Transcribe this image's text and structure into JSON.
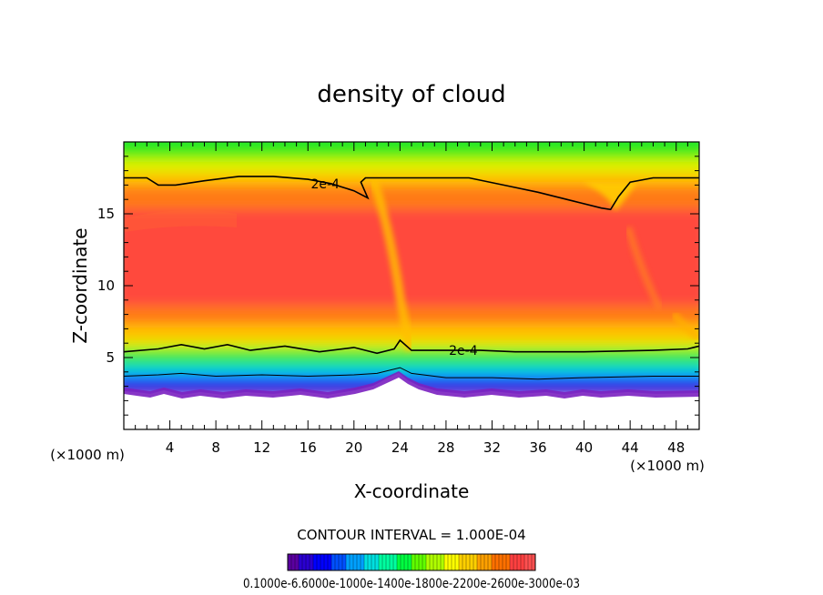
{
  "chart_data": {
    "type": "heatmap",
    "title": "density of cloud",
    "xlabel": "X-coordinate",
    "ylabel": "Z-coordinate",
    "x_unit": "(×1000 m)",
    "z_unit": "(×1000 m)",
    "xlim": [
      0,
      50
    ],
    "ylim": [
      0,
      20
    ],
    "x_ticks": [
      4,
      8,
      12,
      16,
      20,
      24,
      28,
      32,
      36,
      40,
      44,
      48
    ],
    "y_ticks": [
      5,
      10,
      15
    ],
    "grid": false,
    "colormap": "rainbow (purple → blue → cyan → green → yellow → red)",
    "contour_interval": "CONTOUR INTERVAL = 1.000E-04",
    "contour_labels": [
      {
        "text": "2e-4",
        "x": 17.5,
        "z": 17.1
      },
      {
        "text": "2e-4",
        "x": 29.5,
        "z": 5.5
      }
    ],
    "contours": [
      {
        "level": "2e-4",
        "points": [
          [
            0,
            17.5
          ],
          [
            2,
            17.5
          ],
          [
            3,
            17.0
          ],
          [
            4.5,
            17.0
          ],
          [
            7,
            17.3
          ],
          [
            10,
            17.6
          ],
          [
            13,
            17.6
          ],
          [
            16,
            17.4
          ],
          [
            18,
            17.1
          ],
          [
            20,
            16.6
          ],
          [
            21.2,
            16.1
          ],
          [
            20.6,
            17.2
          ],
          [
            21,
            17.5
          ],
          [
            24,
            17.5
          ],
          [
            30,
            17.5
          ],
          [
            33,
            17.0
          ],
          [
            36,
            16.5
          ],
          [
            39,
            15.9
          ],
          [
            41.5,
            15.4
          ],
          [
            42.3,
            15.3
          ],
          [
            43,
            16.2
          ],
          [
            44,
            17.2
          ],
          [
            46,
            17.5
          ],
          [
            50,
            17.5
          ]
        ]
      },
      {
        "level": "2e-4",
        "points": [
          [
            0,
            5.4
          ],
          [
            3,
            5.6
          ],
          [
            5,
            5.9
          ],
          [
            7,
            5.6
          ],
          [
            9,
            5.9
          ],
          [
            11,
            5.5
          ],
          [
            14,
            5.8
          ],
          [
            17,
            5.4
          ],
          [
            20,
            5.7
          ],
          [
            22,
            5.3
          ],
          [
            23.5,
            5.6
          ],
          [
            24,
            6.2
          ],
          [
            25,
            5.5
          ],
          [
            28,
            5.5
          ],
          [
            31,
            5.5
          ],
          [
            34,
            5.4
          ],
          [
            40,
            5.4
          ],
          [
            46,
            5.5
          ],
          [
            49,
            5.6
          ],
          [
            50,
            5.8
          ]
        ]
      },
      {
        "level": "1e-4",
        "points": [
          [
            0,
            3.7
          ],
          [
            3,
            3.8
          ],
          [
            5,
            3.9
          ],
          [
            8,
            3.7
          ],
          [
            12,
            3.8
          ],
          [
            16,
            3.7
          ],
          [
            20,
            3.8
          ],
          [
            22,
            3.9
          ],
          [
            24,
            4.3
          ],
          [
            25,
            3.9
          ],
          [
            28,
            3.6
          ],
          [
            32,
            3.6
          ],
          [
            36,
            3.5
          ],
          [
            40,
            3.6
          ],
          [
            46,
            3.7
          ],
          [
            50,
            3.7
          ]
        ]
      }
    ],
    "colorbar": {
      "tick_labels": "0.1000e-6.6000e-1000e-1400e-1800e-2200e-2600e-3000e-03",
      "colors": [
        "#5a00a0",
        "#2a00d0",
        "#0000ff",
        "#0050ff",
        "#00a0ff",
        "#00e0e0",
        "#00ffa0",
        "#00ff40",
        "#60ff00",
        "#b0ff00",
        "#ffff00",
        "#ffd000",
        "#ffa000",
        "#ff7000",
        "#ff4040",
        "#ff5050"
      ]
    }
  }
}
